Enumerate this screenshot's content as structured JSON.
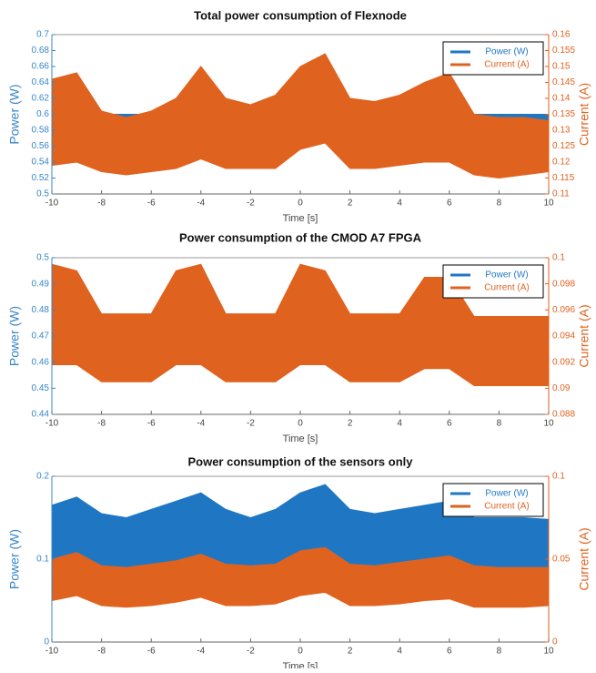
{
  "chart_data": [
    {
      "type": "band",
      "title": "Total power consumption of Flexnode",
      "xlabel": "Time [s]",
      "ylabel": "Power (W)",
      "y2label": "Current (A)",
      "x": [
        -10,
        -9,
        -8,
        -7,
        -6,
        -5,
        -4,
        -3,
        -2,
        -1,
        0,
        1,
        2,
        3,
        4,
        5,
        6,
        7,
        8,
        9,
        10
      ],
      "xlim": [
        -10,
        10
      ],
      "xticks": [
        -10,
        -8,
        -6,
        -4,
        -2,
        0,
        2,
        4,
        6,
        8,
        10
      ],
      "ylim": [
        0.5,
        0.7
      ],
      "yticks": [
        0.5,
        0.52,
        0.54,
        0.56,
        0.58,
        0.6,
        0.62,
        0.64,
        0.66,
        0.68,
        0.7
      ],
      "y2lim": [
        0.11,
        0.16
      ],
      "y2ticks": [
        0.11,
        0.115,
        0.12,
        0.125,
        0.13,
        0.135,
        0.14,
        0.145,
        0.15,
        0.155,
        0.16
      ],
      "series": [
        {
          "name": "Power (W)",
          "color": "#1f77c4",
          "axis": "y",
          "upper": [
            0.62,
            0.62,
            0.6,
            0.6,
            0.6,
            0.6,
            0.62,
            0.6,
            0.6,
            0.6,
            0.62,
            0.62,
            0.6,
            0.6,
            0.6,
            0.61,
            0.62,
            0.6,
            0.6,
            0.6,
            0.6
          ],
          "lower": [
            0.58,
            0.58,
            0.57,
            0.57,
            0.57,
            0.57,
            0.58,
            0.57,
            0.57,
            0.57,
            0.58,
            0.58,
            0.57,
            0.57,
            0.57,
            0.58,
            0.58,
            0.57,
            0.57,
            0.57,
            0.57
          ]
        },
        {
          "name": "Current (A)",
          "color": "#e0621f",
          "axis": "y2",
          "upper": [
            0.146,
            0.148,
            0.136,
            0.134,
            0.136,
            0.14,
            0.15,
            0.14,
            0.138,
            0.141,
            0.15,
            0.154,
            0.14,
            0.139,
            0.141,
            0.145,
            0.148,
            0.135,
            0.134,
            0.134,
            0.133
          ],
          "lower": [
            0.119,
            0.12,
            0.117,
            0.116,
            0.117,
            0.118,
            0.121,
            0.118,
            0.118,
            0.118,
            0.124,
            0.126,
            0.118,
            0.118,
            0.119,
            0.12,
            0.12,
            0.116,
            0.115,
            0.116,
            0.117
          ]
        }
      ]
    },
    {
      "type": "band",
      "title": "Power consumption of the CMOD A7 FPGA",
      "xlabel": "Time [s]",
      "ylabel": "Power (W)",
      "y2label": "Current (A)",
      "x": [
        -10,
        -9,
        -8,
        -7,
        -6,
        -5,
        -4,
        -3,
        -2,
        -1,
        0,
        1,
        2,
        3,
        4,
        5,
        6,
        7,
        8,
        9,
        10
      ],
      "xlim": [
        -10,
        10
      ],
      "xticks": [
        -10,
        -8,
        -6,
        -4,
        -2,
        0,
        2,
        4,
        6,
        8,
        10
      ],
      "ylim": [
        0.44,
        0.5
      ],
      "yticks": [
        0.44,
        0.45,
        0.46,
        0.47,
        0.48,
        0.49,
        0.5
      ],
      "y2lim": [
        0.088,
        0.1
      ],
      "y2ticks": [
        0.088,
        0.09,
        0.092,
        0.094,
        0.096,
        0.098,
        0.1
      ],
      "series": [
        {
          "name": "Power (W)",
          "color": "#1f77c4",
          "axis": "y",
          "upper": [
            0.473,
            0.472,
            0.459,
            0.459,
            0.459,
            0.472,
            0.473,
            0.459,
            0.459,
            0.459,
            0.473,
            0.472,
            0.459,
            0.459,
            0.459,
            0.472,
            0.472,
            0.457,
            0.456,
            0.456,
            0.456
          ],
          "lower": [
            0.466,
            0.466,
            0.454,
            0.454,
            0.454,
            0.466,
            0.466,
            0.454,
            0.454,
            0.454,
            0.466,
            0.466,
            0.454,
            0.454,
            0.454,
            0.466,
            0.466,
            0.452,
            0.452,
            0.452,
            0.452
          ]
        },
        {
          "name": "Current (A)",
          "color": "#e0621f",
          "axis": "y2",
          "upper": [
            0.0995,
            0.099,
            0.0957,
            0.0957,
            0.0957,
            0.099,
            0.0995,
            0.0957,
            0.0957,
            0.0957,
            0.0995,
            0.099,
            0.0957,
            0.0957,
            0.0957,
            0.0985,
            0.0985,
            0.0955,
            0.0955,
            0.0955,
            0.0955
          ],
          "lower": [
            0.0918,
            0.0918,
            0.0905,
            0.0905,
            0.0905,
            0.0918,
            0.0918,
            0.0905,
            0.0905,
            0.0905,
            0.0918,
            0.0918,
            0.0905,
            0.0905,
            0.0905,
            0.0915,
            0.0915,
            0.0902,
            0.0902,
            0.0902,
            0.0902
          ]
        }
      ]
    },
    {
      "type": "band",
      "title": "Power consumption of the sensors only",
      "xlabel": "Time [s]",
      "ylabel": "Power (W)",
      "y2label": "Current (A)",
      "x": [
        -10,
        -9,
        -8,
        -7,
        -6,
        -5,
        -4,
        -3,
        -2,
        -1,
        0,
        1,
        2,
        3,
        4,
        5,
        6,
        7,
        8,
        9,
        10
      ],
      "xlim": [
        -10,
        10
      ],
      "xticks": [
        -10,
        -8,
        -6,
        -4,
        -2,
        0,
        2,
        4,
        6,
        8,
        10
      ],
      "ylim": [
        0,
        0.2
      ],
      "yticks": [
        0,
        0.1,
        0.2
      ],
      "y2lim": [
        0,
        0.1
      ],
      "y2ticks": [
        0,
        0.05,
        0.1
      ],
      "series": [
        {
          "name": "Power (W)",
          "color": "#1f77c4",
          "axis": "y",
          "upper": [
            0.165,
            0.175,
            0.155,
            0.15,
            0.16,
            0.17,
            0.18,
            0.16,
            0.15,
            0.16,
            0.18,
            0.19,
            0.16,
            0.155,
            0.16,
            0.165,
            0.17,
            0.15,
            0.15,
            0.15,
            0.148
          ],
          "lower": [
            0.09,
            0.1,
            0.085,
            0.082,
            0.085,
            0.09,
            0.095,
            0.088,
            0.085,
            0.088,
            0.1,
            0.105,
            0.088,
            0.085,
            0.088,
            0.092,
            0.095,
            0.085,
            0.085,
            0.085,
            0.085
          ]
        },
        {
          "name": "Current (A)",
          "color": "#e0621f",
          "axis": "y2",
          "upper": [
            0.05,
            0.054,
            0.046,
            0.045,
            0.047,
            0.049,
            0.053,
            0.047,
            0.046,
            0.047,
            0.055,
            0.057,
            0.047,
            0.046,
            0.048,
            0.05,
            0.052,
            0.046,
            0.045,
            0.045,
            0.045
          ],
          "lower": [
            0.025,
            0.028,
            0.022,
            0.021,
            0.022,
            0.024,
            0.027,
            0.022,
            0.022,
            0.023,
            0.028,
            0.03,
            0.022,
            0.022,
            0.023,
            0.025,
            0.026,
            0.021,
            0.021,
            0.021,
            0.022
          ]
        }
      ]
    }
  ]
}
